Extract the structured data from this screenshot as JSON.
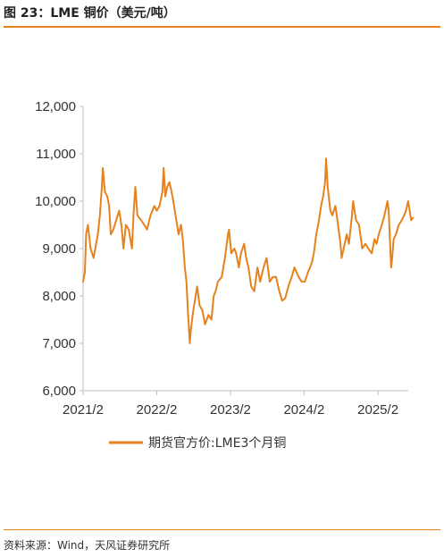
{
  "figure": {
    "title": "图 23：LME 铜价（美元/吨）",
    "source": "资料来源：Wind，天风证券研究所"
  },
  "colors": {
    "accent": "#E6821E",
    "axis": "#bfbfbf",
    "text": "#333333"
  },
  "chart_data": {
    "type": "line",
    "title": "",
    "xlabel": "",
    "ylabel": "",
    "ylim": [
      6000,
      12000
    ],
    "yticks": [
      6000,
      7000,
      8000,
      9000,
      10000,
      11000,
      12000
    ],
    "ytick_labels": [
      "6,000",
      "7,000",
      "8,000",
      "9,000",
      "10,000",
      "11,000",
      "12,000"
    ],
    "xlim": [
      "2021-02",
      "2025-07"
    ],
    "xticks": [
      "2021-02",
      "2022-02",
      "2023-02",
      "2024-02",
      "2025-02"
    ],
    "xtick_labels": [
      "2021/2",
      "2022/2",
      "2023/2",
      "2024/2",
      "2025/2"
    ],
    "grid": false,
    "legend_position": "bottom",
    "series": [
      {
        "name": "期货官方价:LME3个月铜",
        "color": "#E6821E",
        "points": [
          [
            "2021-02-01",
            8300
          ],
          [
            "2021-02-10",
            8500
          ],
          [
            "2021-02-16",
            9300
          ],
          [
            "2021-02-25",
            9500
          ],
          [
            "2021-03-10",
            9000
          ],
          [
            "2021-03-25",
            8800
          ],
          [
            "2021-04-15",
            9300
          ],
          [
            "2021-04-25",
            9700
          ],
          [
            "2021-05-05",
            10300
          ],
          [
            "2021-05-10",
            10700
          ],
          [
            "2021-05-20",
            10200
          ],
          [
            "2021-06-01",
            10100
          ],
          [
            "2021-06-10",
            9900
          ],
          [
            "2021-06-18",
            9300
          ],
          [
            "2021-07-01",
            9400
          ],
          [
            "2021-07-15",
            9600
          ],
          [
            "2021-07-30",
            9800
          ],
          [
            "2021-08-10",
            9500
          ],
          [
            "2021-08-20",
            9000
          ],
          [
            "2021-09-01",
            9500
          ],
          [
            "2021-09-15",
            9400
          ],
          [
            "2021-10-01",
            9000
          ],
          [
            "2021-10-10",
            9800
          ],
          [
            "2021-10-18",
            10300
          ],
          [
            "2021-10-28",
            9700
          ],
          [
            "2021-11-15",
            9600
          ],
          [
            "2021-12-01",
            9500
          ],
          [
            "2021-12-15",
            9400
          ],
          [
            "2022-01-01",
            9700
          ],
          [
            "2022-01-20",
            9900
          ],
          [
            "2022-02-01",
            9800
          ],
          [
            "2022-02-15",
            9900
          ],
          [
            "2022-03-01",
            10200
          ],
          [
            "2022-03-07",
            10700
          ],
          [
            "2022-03-15",
            10100
          ],
          [
            "2022-03-25",
            10300
          ],
          [
            "2022-04-05",
            10400
          ],
          [
            "2022-04-20",
            10100
          ],
          [
            "2022-05-05",
            9700
          ],
          [
            "2022-05-20",
            9300
          ],
          [
            "2022-06-01",
            9500
          ],
          [
            "2022-06-10",
            9200
          ],
          [
            "2022-06-20",
            8600
          ],
          [
            "2022-06-28",
            8300
          ],
          [
            "2022-07-05",
            7700
          ],
          [
            "2022-07-15",
            7000
          ],
          [
            "2022-07-20",
            7300
          ],
          [
            "2022-08-01",
            7700
          ],
          [
            "2022-08-20",
            8200
          ],
          [
            "2022-09-01",
            7800
          ],
          [
            "2022-09-15",
            7700
          ],
          [
            "2022-09-28",
            7400
          ],
          [
            "2022-10-15",
            7600
          ],
          [
            "2022-10-30",
            7500
          ],
          [
            "2022-11-10",
            8000
          ],
          [
            "2022-11-20",
            8100
          ],
          [
            "2022-12-01",
            8300
          ],
          [
            "2022-12-20",
            8400
          ],
          [
            "2023-01-05",
            8800
          ],
          [
            "2023-01-20",
            9300
          ],
          [
            "2023-01-25",
            9400
          ],
          [
            "2023-02-05",
            8900
          ],
          [
            "2023-02-20",
            9000
          ],
          [
            "2023-03-01",
            8900
          ],
          [
            "2023-03-15",
            8600
          ],
          [
            "2023-03-25",
            8900
          ],
          [
            "2023-04-10",
            9100
          ],
          [
            "2023-04-20",
            8800
          ],
          [
            "2023-05-01",
            8600
          ],
          [
            "2023-05-15",
            8200
          ],
          [
            "2023-05-30",
            8100
          ],
          [
            "2023-06-15",
            8600
          ],
          [
            "2023-06-28",
            8300
          ],
          [
            "2023-07-15",
            8600
          ],
          [
            "2023-07-30",
            8800
          ],
          [
            "2023-08-15",
            8300
          ],
          [
            "2023-08-30",
            8400
          ],
          [
            "2023-09-15",
            8400
          ],
          [
            "2023-10-01",
            8100
          ],
          [
            "2023-10-15",
            7900
          ],
          [
            "2023-10-30",
            7950
          ],
          [
            "2023-11-15",
            8200
          ],
          [
            "2023-12-01",
            8400
          ],
          [
            "2023-12-15",
            8600
          ],
          [
            "2024-01-05",
            8400
          ],
          [
            "2024-01-20",
            8300
          ],
          [
            "2024-02-05",
            8300
          ],
          [
            "2024-02-20",
            8500
          ],
          [
            "2024-03-01",
            8600
          ],
          [
            "2024-03-10",
            8700
          ],
          [
            "2024-03-20",
            8900
          ],
          [
            "2024-04-01",
            9300
          ],
          [
            "2024-04-15",
            9600
          ],
          [
            "2024-04-25",
            9900
          ],
          [
            "2024-05-05",
            10100
          ],
          [
            "2024-05-15",
            10400
          ],
          [
            "2024-05-20",
            10900
          ],
          [
            "2024-05-28",
            10300
          ],
          [
            "2024-06-10",
            9800
          ],
          [
            "2024-06-20",
            9700
          ],
          [
            "2024-07-05",
            9900
          ],
          [
            "2024-07-15",
            9600
          ],
          [
            "2024-07-30",
            9100
          ],
          [
            "2024-08-05",
            8800
          ],
          [
            "2024-08-15",
            9000
          ],
          [
            "2024-08-30",
            9300
          ],
          [
            "2024-09-10",
            9100
          ],
          [
            "2024-09-25",
            9700
          ],
          [
            "2024-10-01",
            10000
          ],
          [
            "2024-10-15",
            9600
          ],
          [
            "2024-10-30",
            9500
          ],
          [
            "2024-11-15",
            9000
          ],
          [
            "2024-11-30",
            9100
          ],
          [
            "2024-12-15",
            9000
          ],
          [
            "2025-01-01",
            8900
          ],
          [
            "2025-01-15",
            9200
          ],
          [
            "2025-01-25",
            9100
          ],
          [
            "2025-02-05",
            9300
          ],
          [
            "2025-02-20",
            9500
          ],
          [
            "2025-03-05",
            9700
          ],
          [
            "2025-03-20",
            10000
          ],
          [
            "2025-03-26",
            9800
          ],
          [
            "2025-04-07",
            8600
          ],
          [
            "2025-04-10",
            8700
          ],
          [
            "2025-04-20",
            9200
          ],
          [
            "2025-05-01",
            9300
          ],
          [
            "2025-05-15",
            9500
          ],
          [
            "2025-05-30",
            9600
          ],
          [
            "2025-06-10",
            9700
          ],
          [
            "2025-06-20",
            9800
          ],
          [
            "2025-06-30",
            10000
          ],
          [
            "2025-07-08",
            9800
          ],
          [
            "2025-07-15",
            9600
          ],
          [
            "2025-07-25",
            9650
          ]
        ]
      }
    ]
  }
}
